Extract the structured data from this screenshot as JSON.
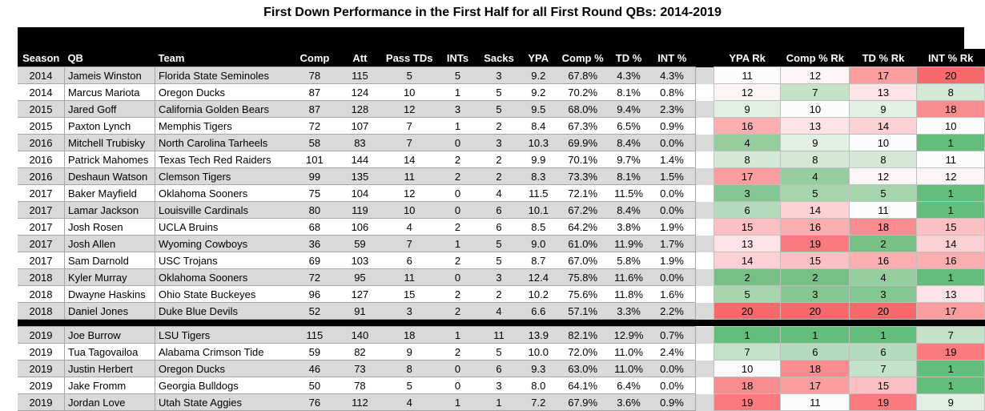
{
  "title": "First Down Performance in the First Half for all First Round QBs: 2014-2019",
  "headers": [
    "Season",
    "QB",
    "Team",
    "Comp",
    "Att",
    "Pass TDs",
    "INTs",
    "Sacks",
    "YPA",
    "Comp %",
    "TD %",
    "INT %",
    "YPA Rk",
    "Comp % Rk",
    "TD % Rk",
    "INT % Rk"
  ],
  "colors": {
    "r20": "#f8696b",
    "r19": "#f97b7d",
    "r18": "#f98c8e",
    "r17": "#fa9d9f",
    "r16": "#fbaeb0",
    "r15": "#fcc0c2",
    "r14": "#fcd1d3",
    "r13": "#fde3e5",
    "r12": "#fdf4f6",
    "r11": "#fbfcfe",
    "r10": "#fbfcfe",
    "r9": "#e1f0e3",
    "r8": "#d3e9d6",
    "r7": "#c3e2c8",
    "r6": "#b4dbbb",
    "r5": "#a5d4ad",
    "r4": "#96cd9f",
    "r3": "#86c692",
    "r2": "#77bf84",
    "r1": "#63be7b"
  },
  "rows": [
    {
      "season": "2014",
      "qb": "Jameis Winston",
      "team": "Florida State Seminoles",
      "comp": "78",
      "att": "115",
      "tds": "5",
      "ints": "5",
      "sacks": "3",
      "ypa": "9.2",
      "comp_pct": "67.8%",
      "td_pct": "4.3%",
      "int_pct": "4.3%",
      "ypa_rk": "11",
      "comp_rk": "12",
      "td_rk": "17",
      "int_rk": "20"
    },
    {
      "season": "2014",
      "qb": "Marcus Mariota",
      "team": "Oregon Ducks",
      "comp": "87",
      "att": "124",
      "tds": "10",
      "ints": "1",
      "sacks": "5",
      "ypa": "9.2",
      "comp_pct": "70.2%",
      "td_pct": "8.1%",
      "int_pct": "0.8%",
      "ypa_rk": "12",
      "comp_rk": "7",
      "td_rk": "13",
      "int_rk": "8"
    },
    {
      "season": "2015",
      "qb": "Jared Goff",
      "team": "California Golden Bears",
      "comp": "87",
      "att": "128",
      "tds": "12",
      "ints": "3",
      "sacks": "5",
      "ypa": "9.5",
      "comp_pct": "68.0%",
      "td_pct": "9.4%",
      "int_pct": "2.3%",
      "ypa_rk": "9",
      "comp_rk": "10",
      "td_rk": "9",
      "int_rk": "18"
    },
    {
      "season": "2015",
      "qb": "Paxton Lynch",
      "team": "Memphis Tigers",
      "comp": "72",
      "att": "107",
      "tds": "7",
      "ints": "1",
      "sacks": "2",
      "ypa": "8.4",
      "comp_pct": "67.3%",
      "td_pct": "6.5%",
      "int_pct": "0.9%",
      "ypa_rk": "16",
      "comp_rk": "13",
      "td_rk": "14",
      "int_rk": "10"
    },
    {
      "season": "2016",
      "qb": "Mitchell Trubisky",
      "team": "North Carolina Tarheels",
      "comp": "58",
      "att": "83",
      "tds": "7",
      "ints": "0",
      "sacks": "3",
      "ypa": "10.3",
      "comp_pct": "69.9%",
      "td_pct": "8.4%",
      "int_pct": "0.0%",
      "ypa_rk": "4",
      "comp_rk": "9",
      "td_rk": "10",
      "int_rk": "1"
    },
    {
      "season": "2016",
      "qb": "Patrick Mahomes",
      "team": "Texas Tech Red Raiders",
      "comp": "101",
      "att": "144",
      "tds": "14",
      "ints": "2",
      "sacks": "2",
      "ypa": "9.9",
      "comp_pct": "70.1%",
      "td_pct": "9.7%",
      "int_pct": "1.4%",
      "ypa_rk": "8",
      "comp_rk": "8",
      "td_rk": "8",
      "int_rk": "11"
    },
    {
      "season": "2016",
      "qb": "Deshaun Watson",
      "team": "Clemson Tigers",
      "comp": "99",
      "att": "135",
      "tds": "11",
      "ints": "2",
      "sacks": "2",
      "ypa": "8.3",
      "comp_pct": "73.3%",
      "td_pct": "8.1%",
      "int_pct": "1.5%",
      "ypa_rk": "17",
      "comp_rk": "4",
      "td_rk": "12",
      "int_rk": "12"
    },
    {
      "season": "2017",
      "qb": "Baker Mayfield",
      "team": "Oklahoma Sooners",
      "comp": "75",
      "att": "104",
      "tds": "12",
      "ints": "0",
      "sacks": "4",
      "ypa": "11.5",
      "comp_pct": "72.1%",
      "td_pct": "11.5%",
      "int_pct": "0.0%",
      "ypa_rk": "3",
      "comp_rk": "5",
      "td_rk": "5",
      "int_rk": "1"
    },
    {
      "season": "2017",
      "qb": "Lamar Jackson",
      "team": "Louisville Cardinals",
      "comp": "80",
      "att": "119",
      "tds": "10",
      "ints": "0",
      "sacks": "6",
      "ypa": "10.1",
      "comp_pct": "67.2%",
      "td_pct": "8.4%",
      "int_pct": "0.0%",
      "ypa_rk": "6",
      "comp_rk": "14",
      "td_rk": "11",
      "int_rk": "1"
    },
    {
      "season": "2017",
      "qb": "Josh Rosen",
      "team": "UCLA Bruins",
      "comp": "68",
      "att": "106",
      "tds": "4",
      "ints": "2",
      "sacks": "6",
      "ypa": "8.5",
      "comp_pct": "64.2%",
      "td_pct": "3.8%",
      "int_pct": "1.9%",
      "ypa_rk": "15",
      "comp_rk": "16",
      "td_rk": "18",
      "int_rk": "15"
    },
    {
      "season": "2017",
      "qb": "Josh Allen",
      "team": "Wyoming Cowboys",
      "comp": "36",
      "att": "59",
      "tds": "7",
      "ints": "1",
      "sacks": "5",
      "ypa": "9.0",
      "comp_pct": "61.0%",
      "td_pct": "11.9%",
      "int_pct": "1.7%",
      "ypa_rk": "13",
      "comp_rk": "19",
      "td_rk": "2",
      "int_rk": "14"
    },
    {
      "season": "2017",
      "qb": "Sam Darnold",
      "team": "USC Trojans",
      "comp": "69",
      "att": "103",
      "tds": "6",
      "ints": "2",
      "sacks": "5",
      "ypa": "8.7",
      "comp_pct": "67.0%",
      "td_pct": "5.8%",
      "int_pct": "1.9%",
      "ypa_rk": "14",
      "comp_rk": "15",
      "td_rk": "16",
      "int_rk": "16"
    },
    {
      "season": "2018",
      "qb": "Kyler Murray",
      "team": "Oklahoma Sooners",
      "comp": "72",
      "att": "95",
      "tds": "11",
      "ints": "0",
      "sacks": "3",
      "ypa": "12.4",
      "comp_pct": "75.8%",
      "td_pct": "11.6%",
      "int_pct": "0.0%",
      "ypa_rk": "2",
      "comp_rk": "2",
      "td_rk": "4",
      "int_rk": "1"
    },
    {
      "season": "2018",
      "qb": "Dwayne Haskins",
      "team": "Ohio State Buckeyes",
      "comp": "96",
      "att": "127",
      "tds": "15",
      "ints": "2",
      "sacks": "2",
      "ypa": "10.2",
      "comp_pct": "75.6%",
      "td_pct": "11.8%",
      "int_pct": "1.6%",
      "ypa_rk": "5",
      "comp_rk": "3",
      "td_rk": "3",
      "int_rk": "13"
    },
    {
      "season": "2018",
      "qb": "Daniel Jones",
      "team": "Duke Blue Devils",
      "comp": "52",
      "att": "91",
      "tds": "3",
      "ints": "2",
      "sacks": "4",
      "ypa": "6.6",
      "comp_pct": "57.1%",
      "td_pct": "3.3%",
      "int_pct": "2.2%",
      "ypa_rk": "20",
      "comp_rk": "20",
      "td_rk": "20",
      "int_rk": "17"
    },
    {
      "season": "2019",
      "qb": "Joe Burrow",
      "team": "LSU Tigers",
      "comp": "115",
      "att": "140",
      "tds": "18",
      "ints": "1",
      "sacks": "11",
      "ypa": "13.9",
      "comp_pct": "82.1%",
      "td_pct": "12.9%",
      "int_pct": "0.7%",
      "ypa_rk": "1",
      "comp_rk": "1",
      "td_rk": "1",
      "int_rk": "7"
    },
    {
      "season": "2019",
      "qb": "Tua Tagovailoa",
      "team": "Alabama Crimson Tide",
      "comp": "59",
      "att": "82",
      "tds": "9",
      "ints": "2",
      "sacks": "5",
      "ypa": "10.0",
      "comp_pct": "72.0%",
      "td_pct": "11.0%",
      "int_pct": "2.4%",
      "ypa_rk": "7",
      "comp_rk": "6",
      "td_rk": "6",
      "int_rk": "19"
    },
    {
      "season": "2019",
      "qb": "Justin Herbert",
      "team": "Oregon Ducks",
      "comp": "46",
      "att": "73",
      "tds": "8",
      "ints": "0",
      "sacks": "6",
      "ypa": "9.3",
      "comp_pct": "63.0%",
      "td_pct": "11.0%",
      "int_pct": "0.0%",
      "ypa_rk": "10",
      "comp_rk": "18",
      "td_rk": "7",
      "int_rk": "1"
    },
    {
      "season": "2019",
      "qb": "Jake Fromm",
      "team": "Georgia Bulldogs",
      "comp": "50",
      "att": "78",
      "tds": "5",
      "ints": "0",
      "sacks": "3",
      "ypa": "8.0",
      "comp_pct": "64.1%",
      "td_pct": "6.4%",
      "int_pct": "0.0%",
      "ypa_rk": "18",
      "comp_rk": "17",
      "td_rk": "15",
      "int_rk": "1"
    },
    {
      "season": "2019",
      "qb": "Jordan Love",
      "team": "Utah State Aggies",
      "comp": "76",
      "att": "112",
      "tds": "4",
      "ints": "1",
      "sacks": "1",
      "ypa": "7.2",
      "comp_pct": "67.9%",
      "td_pct": "3.6%",
      "int_pct": "0.9%",
      "ypa_rk": "19",
      "comp_rk": "11",
      "td_rk": "19",
      "int_rk": "9"
    }
  ]
}
